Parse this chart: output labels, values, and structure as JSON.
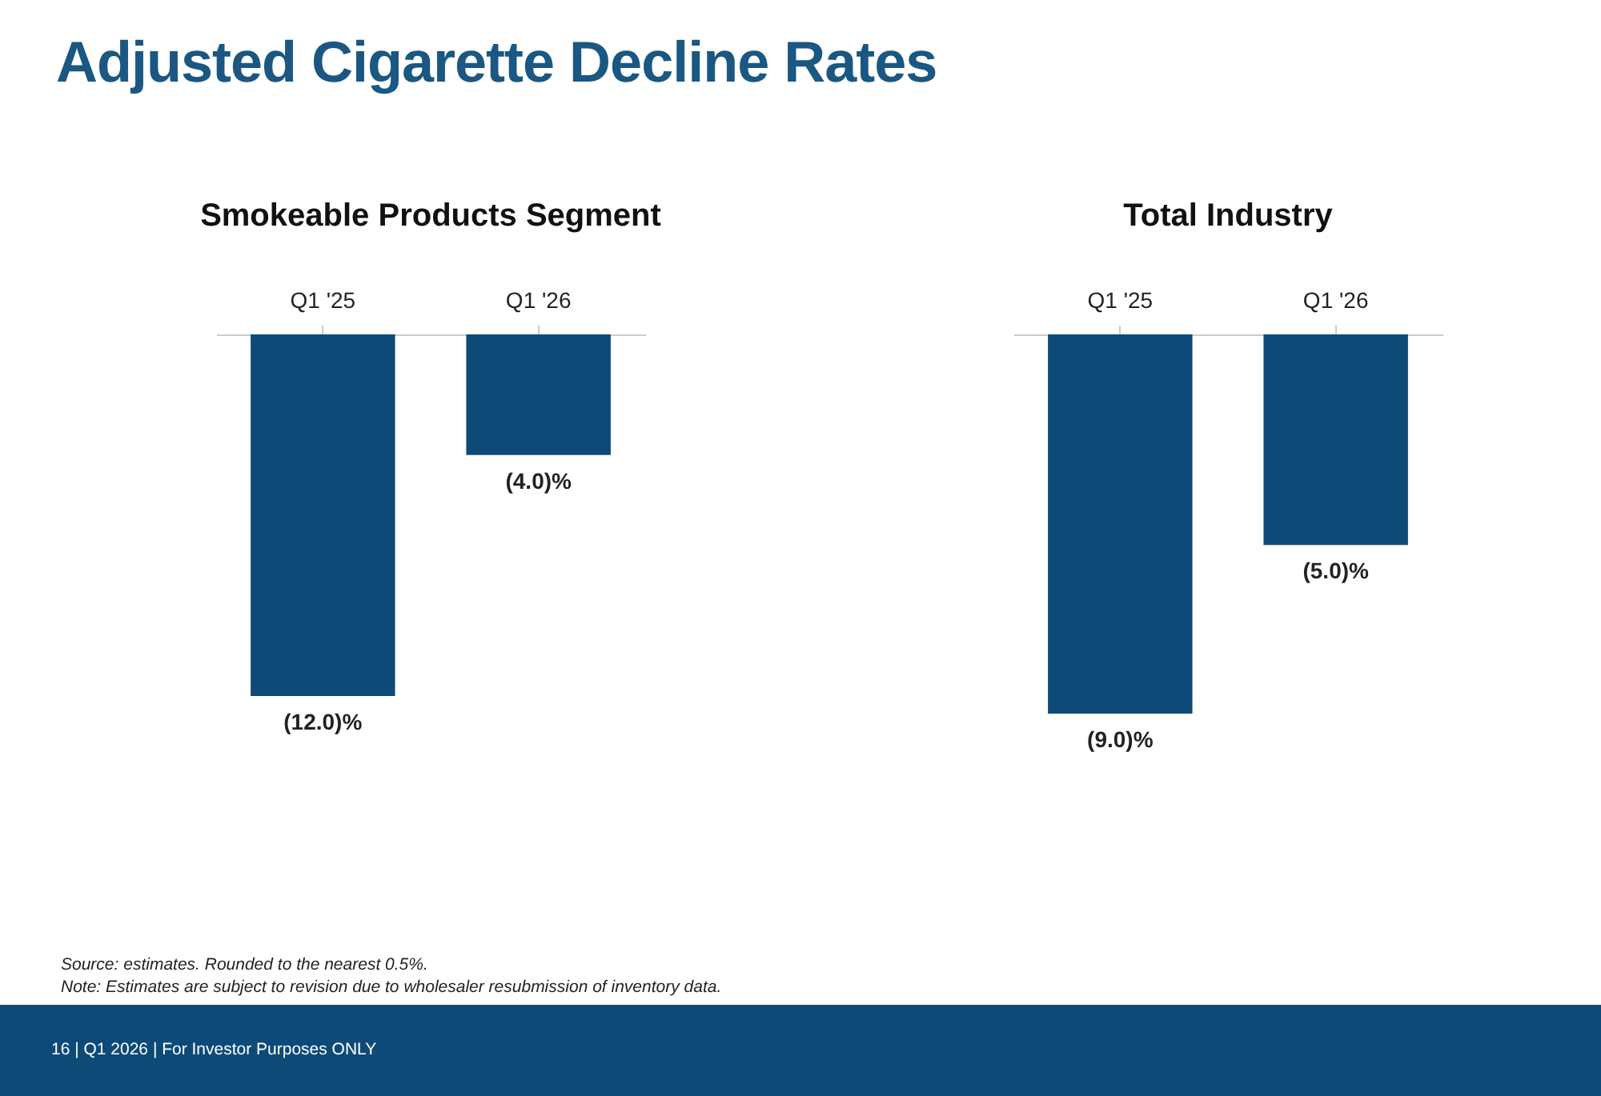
{
  "chart_data": [
    {
      "type": "bar",
      "title": "Adjusted Cigarette Decline Rates",
      "subtitle": "Smokeable Products Segment",
      "categories": [
        "Q1 '25",
        "Q1 '26"
      ],
      "values": [
        -12,
        -4
      ],
      "value_labels": [
        "(12.0)%",
        "(4.0)%"
      ],
      "color": "#0d4a77"
    },
    {
      "type": "bar",
      "title": "Total Industry",
      "categories": [
        "Q1 '25",
        "Q1 '26"
      ],
      "values": [
        -9,
        -5
      ],
      "value_labels": [
        "(9.0)%",
        "(5.0)%"
      ],
      "color": "#0d4a77",
      "annotations": [
        "Source: estimates. Rounded to the nearest 0.5%.",
        "Note: Estimates are subject to revision due to wholesaler resubmission of inventory data.",
        "16 | Q1 2026 | For Investor Purposes ONLY"
      ]
    }
  ]
}
